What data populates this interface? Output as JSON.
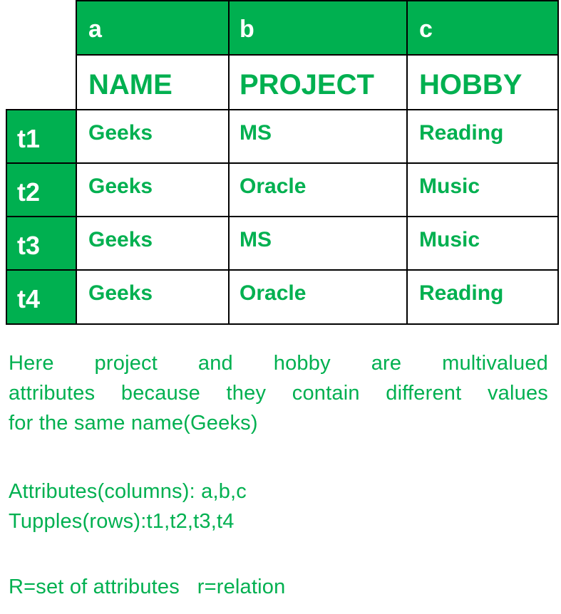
{
  "table": {
    "column_letters": [
      "a",
      "b",
      "c"
    ],
    "column_names": [
      "NAME",
      "PROJECT",
      "HOBBY"
    ],
    "rows": [
      {
        "id": "t1",
        "values": [
          "Geeks",
          "MS",
          "Reading"
        ]
      },
      {
        "id": "t2",
        "values": [
          "Geeks",
          "Oracle",
          "Music"
        ]
      },
      {
        "id": "t3",
        "values": [
          "Geeks",
          "MS",
          "Music"
        ]
      },
      {
        "id": "t4",
        "values": [
          "Geeks",
          "Oracle",
          "Reading"
        ]
      }
    ]
  },
  "note": {
    "line1": "Here project and hobby are multivalued",
    "line2": "attributes because they contain different values",
    "line3": "for the same name(Geeks)"
  },
  "attributes_line": "Attributes(columns): a,b,c",
  "tuples_line": "Tupples(rows):t1,t2,t3,t4",
  "relation_line": "R=set of attributes   r=relation",
  "colors": {
    "accent": "#00b050",
    "border": "#000000",
    "background": "#ffffff"
  }
}
